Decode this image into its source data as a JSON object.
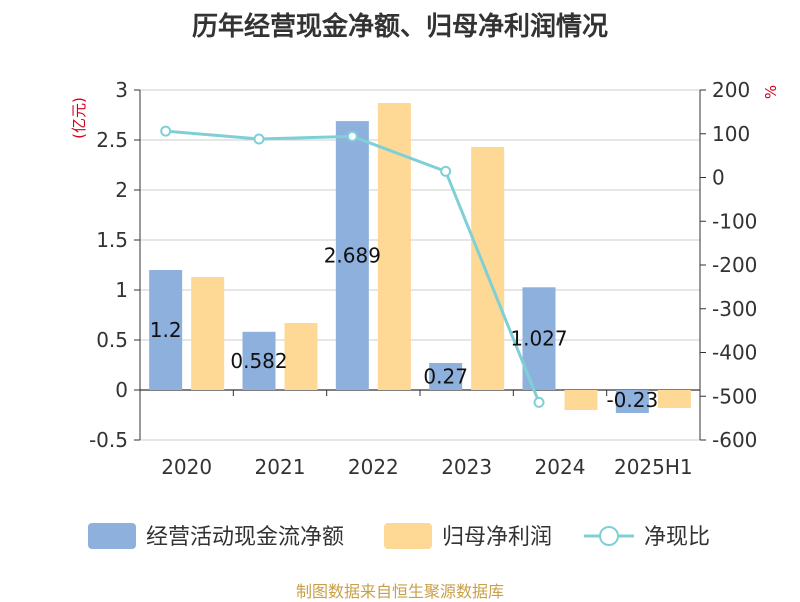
{
  "title": "历年经营现金净额、归母净利润情况",
  "source": "制图数据来自恒生聚源数据库",
  "colors": {
    "cash": "#8eb0dc",
    "profit": "#fed895",
    "ratio": "#7fd0d6"
  },
  "chart_data": {
    "type": "bar",
    "categories": [
      "2020",
      "2021",
      "2022",
      "2023",
      "2024",
      "2025H1"
    ],
    "y_left": {
      "unit": "(亿元)",
      "ylim": [
        -0.5,
        3
      ],
      "ticks": [
        "3",
        "2.5",
        "2",
        "1.5",
        "1",
        "0.5",
        "0",
        "-0.5"
      ]
    },
    "y_right": {
      "unit": "%",
      "ylim": [
        -600,
        200
      ],
      "ticks": [
        "200",
        "100",
        "0",
        "-100",
        "-200",
        "-300",
        "-400",
        "-500",
        "-600"
      ]
    },
    "grid": true,
    "legend_position": "bottom",
    "series": [
      {
        "name": "经营活动现金流净额",
        "type": "bar",
        "axis": "left",
        "values": [
          1.2,
          0.582,
          2.689,
          0.27,
          1.027,
          -0.23
        ],
        "labels": [
          "1.2",
          "0.582",
          "2.689",
          "0.27",
          "1.027",
          "-0.23"
        ]
      },
      {
        "name": "归母净利润",
        "type": "bar",
        "axis": "left",
        "values": [
          1.13,
          0.67,
          2.87,
          2.43,
          -0.2,
          -0.18
        ]
      },
      {
        "name": "净现比",
        "type": "line",
        "axis": "right",
        "values": [
          106,
          88,
          94,
          14,
          -514,
          null
        ]
      }
    ]
  }
}
